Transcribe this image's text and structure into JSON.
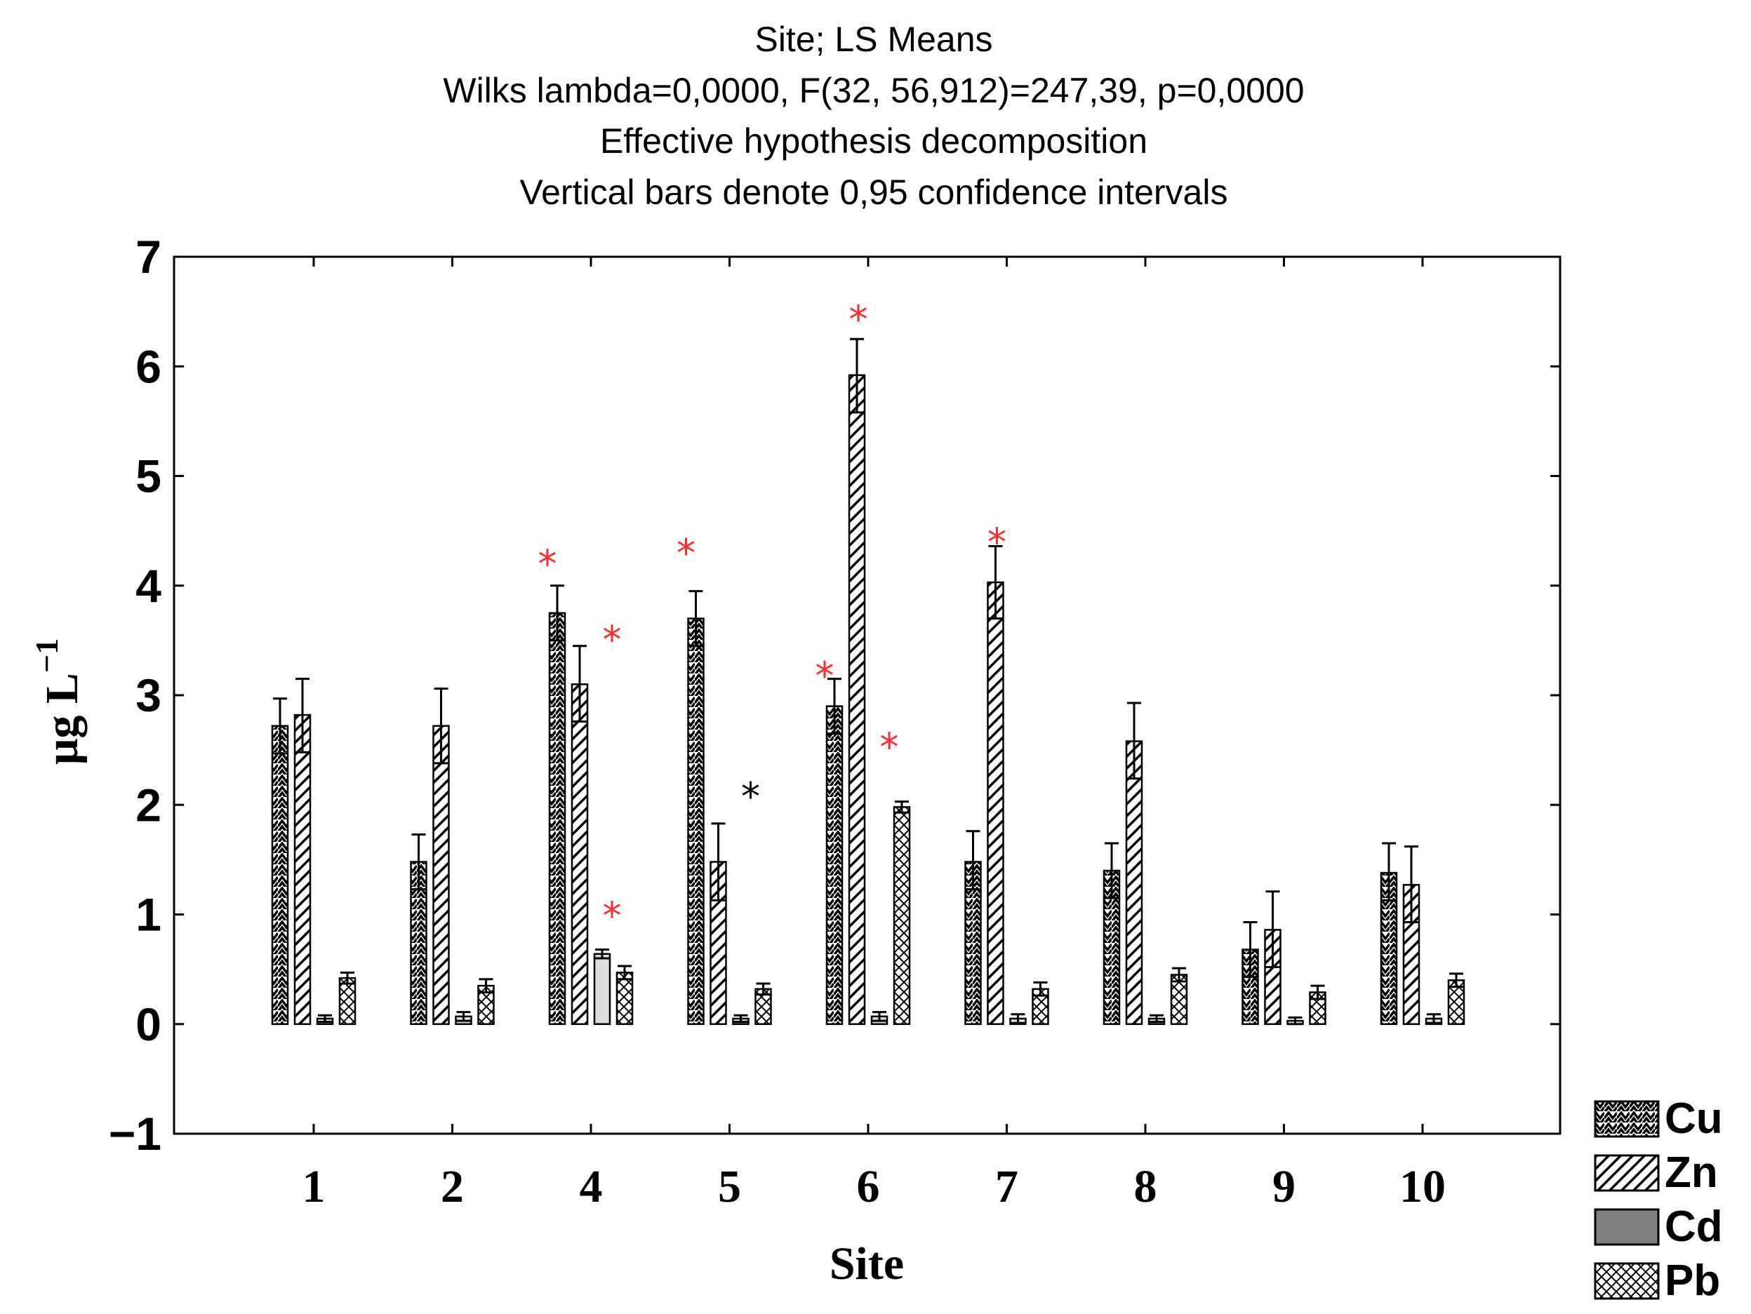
{
  "chart_data": {
    "type": "bar",
    "title": [
      "Site; LS Means",
      "Wilks lambda=0,0000, F(32, 56,912)=247,39, p=0,0000",
      "Effective hypothesis decomposition",
      "Vertical bars denote 0,95 confidence intervals"
    ],
    "xlabel": "Site",
    "ylabel_main": "μg L",
    "ylabel_exp": "−1",
    "ylim": [
      -1,
      7
    ],
    "yticks": [
      "−1",
      "0",
      "1",
      "2",
      "3",
      "4",
      "5",
      "6",
      "7"
    ],
    "categories": [
      "1",
      "2",
      "4",
      "5",
      "6",
      "7",
      "8",
      "9",
      "10"
    ],
    "legend_position": "bottom-right outside",
    "series": [
      {
        "name": "Cu",
        "pattern": "zigzag",
        "values": [
          2.72,
          1.48,
          3.75,
          3.7,
          2.9,
          1.48,
          1.4,
          0.68,
          1.38
        ],
        "ci": [
          [
            2.47,
            2.97
          ],
          [
            1.23,
            1.73
          ],
          [
            3.5,
            4.0
          ],
          [
            3.45,
            3.95
          ],
          [
            2.65,
            3.15
          ],
          [
            1.23,
            1.76
          ],
          [
            1.15,
            1.65
          ],
          [
            0.43,
            0.93
          ],
          [
            1.13,
            1.65
          ]
        ]
      },
      {
        "name": "Zn",
        "pattern": "diagonal",
        "values": [
          2.82,
          2.72,
          3.1,
          1.48,
          5.92,
          4.03,
          2.58,
          0.86,
          1.27
        ],
        "ci": [
          [
            2.48,
            3.15
          ],
          [
            2.38,
            3.06
          ],
          [
            2.76,
            3.45
          ],
          [
            1.13,
            1.83
          ],
          [
            5.58,
            6.25
          ],
          [
            3.7,
            4.36
          ],
          [
            2.24,
            2.93
          ],
          [
            0.52,
            1.21
          ],
          [
            0.93,
            1.62
          ]
        ]
      },
      {
        "name": "Cd",
        "pattern": "solid",
        "values": [
          0.05,
          0.07,
          0.64,
          0.05,
          0.07,
          0.05,
          0.05,
          0.03,
          0.05
        ],
        "ci": [
          [
            0.02,
            0.08
          ],
          [
            0.03,
            0.11
          ],
          [
            0.6,
            0.68
          ],
          [
            0.02,
            0.08
          ],
          [
            0.03,
            0.11
          ],
          [
            0.01,
            0.09
          ],
          [
            0.02,
            0.08
          ],
          [
            0.0,
            0.06
          ],
          [
            0.01,
            0.09
          ]
        ]
      },
      {
        "name": "Pb",
        "pattern": "crosshatch",
        "values": [
          0.42,
          0.35,
          0.47,
          0.32,
          1.98,
          0.32,
          0.45,
          0.29,
          0.4
        ],
        "ci": [
          [
            0.37,
            0.47
          ],
          [
            0.29,
            0.41
          ],
          [
            0.41,
            0.53
          ],
          [
            0.27,
            0.37
          ],
          [
            1.93,
            2.03
          ],
          [
            0.26,
            0.38
          ],
          [
            0.39,
            0.51
          ],
          [
            0.23,
            0.35
          ],
          [
            0.34,
            0.46
          ]
        ]
      }
    ],
    "annotations": [
      {
        "text": "*",
        "category": "4",
        "y": 4.27,
        "side": "left",
        "color": "#ff2a2a"
      },
      {
        "text": "*",
        "category": "4",
        "y": 3.58,
        "side": "right",
        "color": "#ff2a2a"
      },
      {
        "text": "*",
        "category": "4",
        "y": 1.06,
        "side": "right",
        "color": "#ff2a2a"
      },
      {
        "text": "*",
        "category": "5",
        "y": 4.37,
        "side": "left",
        "color": "#ff2a2a"
      },
      {
        "text": "*",
        "category": "5",
        "y": 2.15,
        "side": "right",
        "color": "#000000"
      },
      {
        "text": "*",
        "category": "6",
        "y": 3.25,
        "side": "left",
        "color": "#ff2a2a"
      },
      {
        "text": "*",
        "category": "6",
        "y": 6.5,
        "side": "center",
        "color": "#ff2a2a"
      },
      {
        "text": "*",
        "category": "6",
        "y": 2.6,
        "side": "right",
        "color": "#ff2a2a"
      },
      {
        "text": "*",
        "category": "7",
        "y": 4.47,
        "side": "center",
        "color": "#ff2a2a"
      }
    ],
    "colors": {
      "bar_fill": "#ffffff",
      "bar_stroke": "#000000",
      "cd_fill": "#dcdcdc",
      "cd_legend_fill": "#808080",
      "star_red": "#ff2a2a"
    }
  }
}
